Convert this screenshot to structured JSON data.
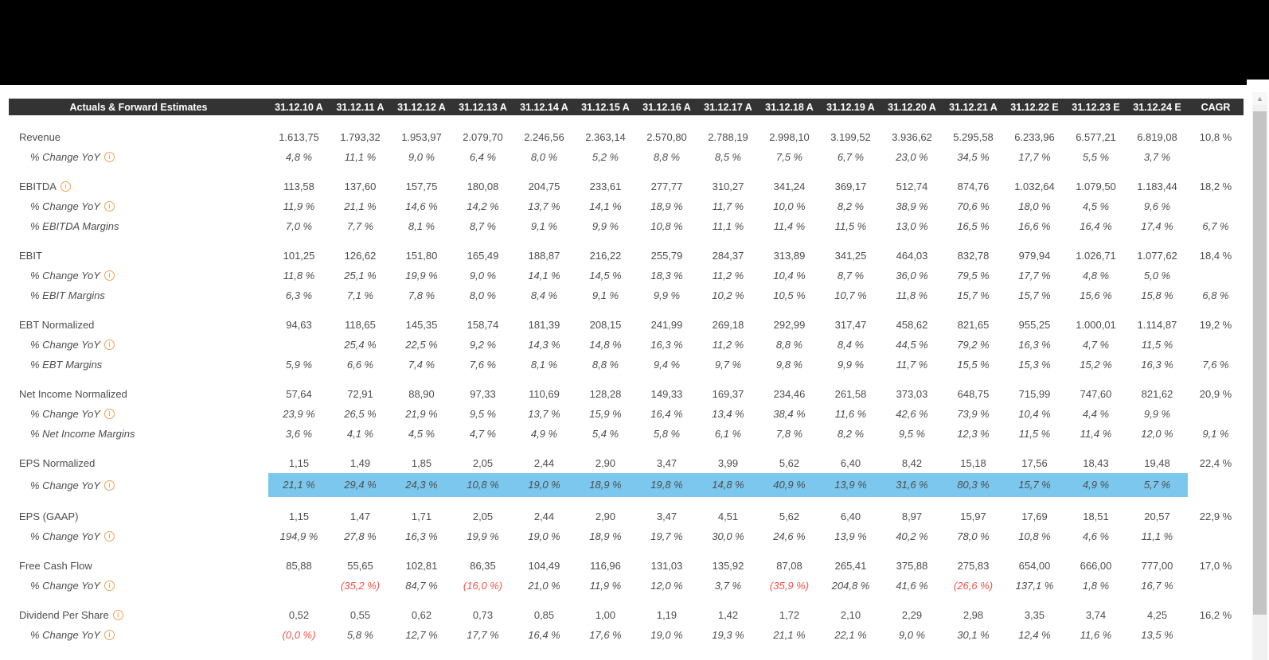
{
  "header": {
    "label": "Actuals & Forward Estimates",
    "columns": [
      "31.12.10 A",
      "31.12.11 A",
      "31.12.12 A",
      "31.12.13 A",
      "31.12.14 A",
      "31.12.15 A",
      "31.12.16 A",
      "31.12.17 A",
      "31.12.18 A",
      "31.12.19 A",
      "31.12.20 A",
      "31.12.21 A",
      "31.12.22 E",
      "31.12.23 E",
      "31.12.24 E",
      "CAGR"
    ]
  },
  "icons": {
    "info": "i",
    "scroll_up": "▲"
  },
  "colors": {
    "header_bg": "#333333",
    "highlight": "#7cc7ee",
    "negative": "#f0534b",
    "info_orange": "#f0a04f",
    "text": "#4d4d4d"
  },
  "table": {
    "rows": [
      {
        "label": "Revenue",
        "type": "main",
        "info": false,
        "highlight": false,
        "values": [
          "1.613,75",
          "1.793,32",
          "1.953,97",
          "2.079,70",
          "2.246,56",
          "2.363,14",
          "2.570,80",
          "2.788,19",
          "2.998,10",
          "3.199,52",
          "3.936,62",
          "5.295,58",
          "6.233,96",
          "6.577,21",
          "6.819,08"
        ],
        "cagr": "10,8 %"
      },
      {
        "label": "% Change YoY",
        "type": "sub",
        "info": true,
        "highlight": false,
        "values": [
          "4,8 %",
          "11,1 %",
          "9,0 %",
          "6,4 %",
          "8,0 %",
          "5,2 %",
          "8,8 %",
          "8,5 %",
          "7,5 %",
          "6,7 %",
          "23,0 %",
          "34,5 %",
          "17,7 %",
          "5,5 %",
          "3,7 %"
        ],
        "cagr": ""
      },
      {
        "label": "EBITDA",
        "type": "main",
        "info": true,
        "highlight": false,
        "values": [
          "113,58",
          "137,60",
          "157,75",
          "180,08",
          "204,75",
          "233,61",
          "277,77",
          "310,27",
          "341,24",
          "369,17",
          "512,74",
          "874,76",
          "1.032,64",
          "1.079,50",
          "1.183,44"
        ],
        "cagr": "18,2 %"
      },
      {
        "label": "% Change YoY",
        "type": "sub",
        "info": true,
        "highlight": false,
        "values": [
          "11,9 %",
          "21,1 %",
          "14,6 %",
          "14,2 %",
          "13,7 %",
          "14,1 %",
          "18,9 %",
          "11,7 %",
          "10,0 %",
          "8,2 %",
          "38,9 %",
          "70,6 %",
          "18,0 %",
          "4,5 %",
          "9,6 %"
        ],
        "cagr": ""
      },
      {
        "label": "% EBITDA Margins",
        "type": "sub",
        "info": false,
        "highlight": false,
        "values": [
          "7,0 %",
          "7,7 %",
          "8,1 %",
          "8,7 %",
          "9,1 %",
          "9,9 %",
          "10,8 %",
          "11,1 %",
          "11,4 %",
          "11,5 %",
          "13,0 %",
          "16,5 %",
          "16,6 %",
          "16,4 %",
          "17,4 %"
        ],
        "cagr": "6,7 %"
      },
      {
        "label": "EBIT",
        "type": "main",
        "info": false,
        "highlight": false,
        "values": [
          "101,25",
          "126,62",
          "151,80",
          "165,49",
          "188,87",
          "216,22",
          "255,79",
          "284,37",
          "313,89",
          "341,25",
          "464,03",
          "832,78",
          "979,94",
          "1.026,71",
          "1.077,62"
        ],
        "cagr": "18,4 %"
      },
      {
        "label": "% Change YoY",
        "type": "sub",
        "info": true,
        "highlight": false,
        "values": [
          "11,8 %",
          "25,1 %",
          "19,9 %",
          "9,0 %",
          "14,1 %",
          "14,5 %",
          "18,3 %",
          "11,2 %",
          "10,4 %",
          "8,7 %",
          "36,0 %",
          "79,5 %",
          "17,7 %",
          "4,8 %",
          "5,0 %"
        ],
        "cagr": ""
      },
      {
        "label": "% EBIT Margins",
        "type": "sub",
        "info": false,
        "highlight": false,
        "values": [
          "6,3 %",
          "7,1 %",
          "7,8 %",
          "8,0 %",
          "8,4 %",
          "9,1 %",
          "9,9 %",
          "10,2 %",
          "10,5 %",
          "10,7 %",
          "11,8 %",
          "15,7 %",
          "15,7 %",
          "15,6 %",
          "15,8 %"
        ],
        "cagr": "6,8 %"
      },
      {
        "label": "EBT Normalized",
        "type": "main",
        "info": false,
        "highlight": false,
        "values": [
          "94,63",
          "118,65",
          "145,35",
          "158,74",
          "181,39",
          "208,15",
          "241,99",
          "269,18",
          "292,99",
          "317,47",
          "458,62",
          "821,65",
          "955,25",
          "1.000,01",
          "1.114,87"
        ],
        "cagr": "19,2 %"
      },
      {
        "label": "% Change YoY",
        "type": "sub",
        "info": true,
        "highlight": false,
        "values": [
          "",
          "25,4 %",
          "22,5 %",
          "9,2 %",
          "14,3 %",
          "14,8 %",
          "16,3 %",
          "11,2 %",
          "8,8 %",
          "8,4 %",
          "44,5 %",
          "79,2 %",
          "16,3 %",
          "4,7 %",
          "11,5 %"
        ],
        "cagr": ""
      },
      {
        "label": "% EBT Margins",
        "type": "sub",
        "info": false,
        "highlight": false,
        "values": [
          "5,9 %",
          "6,6 %",
          "7,4 %",
          "7,6 %",
          "8,1 %",
          "8,8 %",
          "9,4 %",
          "9,7 %",
          "9,8 %",
          "9,9 %",
          "11,7 %",
          "15,5 %",
          "15,3 %",
          "15,2 %",
          "16,3 %"
        ],
        "cagr": "7,6 %"
      },
      {
        "label": "Net Income Normalized",
        "type": "main",
        "info": false,
        "highlight": false,
        "values": [
          "57,64",
          "72,91",
          "88,90",
          "97,33",
          "110,69",
          "128,28",
          "149,33",
          "169,37",
          "234,46",
          "261,58",
          "373,03",
          "648,75",
          "715,99",
          "747,60",
          "821,62"
        ],
        "cagr": "20,9 %"
      },
      {
        "label": "% Change YoY",
        "type": "sub",
        "info": true,
        "highlight": false,
        "values": [
          "23,9 %",
          "26,5 %",
          "21,9 %",
          "9,5 %",
          "13,7 %",
          "15,9 %",
          "16,4 %",
          "13,4 %",
          "38,4 %",
          "11,6 %",
          "42,6 %",
          "73,9 %",
          "10,4 %",
          "4,4 %",
          "9,9 %"
        ],
        "cagr": ""
      },
      {
        "label": "% Net Income Margins",
        "type": "sub",
        "info": false,
        "highlight": false,
        "values": [
          "3,6 %",
          "4,1 %",
          "4,5 %",
          "4,7 %",
          "4,9 %",
          "5,4 %",
          "5,8 %",
          "6,1 %",
          "7,8 %",
          "8,2 %",
          "9,5 %",
          "12,3 %",
          "11,5 %",
          "11,4 %",
          "12,0 %"
        ],
        "cagr": "9,1 %"
      },
      {
        "label": "EPS Normalized",
        "type": "main",
        "info": false,
        "highlight": false,
        "values": [
          "1,15",
          "1,49",
          "1,85",
          "2,05",
          "2,44",
          "2,90",
          "3,47",
          "3,99",
          "5,62",
          "6,40",
          "8,42",
          "15,18",
          "17,56",
          "18,43",
          "19,48"
        ],
        "cagr": "22,4 %"
      },
      {
        "label": "% Change YoY",
        "type": "sub",
        "info": true,
        "highlight": true,
        "values": [
          "21,1 %",
          "29,4 %",
          "24,3 %",
          "10,8 %",
          "19,0 %",
          "18,9 %",
          "19,8 %",
          "14,8 %",
          "40,9 %",
          "13,9 %",
          "31,6 %",
          "80,3 %",
          "15,7 %",
          "4,9 %",
          "5,7 %"
        ],
        "cagr": ""
      },
      {
        "label": "EPS (GAAP)",
        "type": "main",
        "info": false,
        "highlight": false,
        "values": [
          "1,15",
          "1,47",
          "1,71",
          "2,05",
          "2,44",
          "2,90",
          "3,47",
          "4,51",
          "5,62",
          "6,40",
          "8,97",
          "15,97",
          "17,69",
          "18,51",
          "20,57"
        ],
        "cagr": "22,9 %"
      },
      {
        "label": "% Change YoY",
        "type": "sub",
        "info": true,
        "highlight": false,
        "values": [
          "194,9 %",
          "27,8 %",
          "16,3 %",
          "19,9 %",
          "19,0 %",
          "18,9 %",
          "19,7 %",
          "30,0 %",
          "24,6 %",
          "13,9 %",
          "40,2 %",
          "78,0 %",
          "10,8 %",
          "4,6 %",
          "11,1 %"
        ],
        "cagr": ""
      },
      {
        "label": "Free Cash Flow",
        "type": "main",
        "info": false,
        "highlight": false,
        "values": [
          "85,88",
          "55,65",
          "102,81",
          "86,35",
          "104,49",
          "116,96",
          "131,03",
          "135,92",
          "87,08",
          "265,41",
          "375,88",
          "275,83",
          "654,00",
          "666,00",
          "777,00"
        ],
        "cagr": "17,0 %"
      },
      {
        "label": "% Change YoY",
        "type": "sub",
        "info": true,
        "highlight": false,
        "values": [
          "",
          "(35,2 %)",
          "84,7 %",
          "(16,0 %)",
          "21,0 %",
          "11,9 %",
          "12,0 %",
          "3,7 %",
          "(35,9 %)",
          "204,8 %",
          "41,6 %",
          "(26,6 %)",
          "137,1 %",
          "1,8 %",
          "16,7 %"
        ],
        "cagr": ""
      },
      {
        "label": "Dividend Per Share",
        "type": "main",
        "info": true,
        "highlight": false,
        "values": [
          "0,52",
          "0,55",
          "0,62",
          "0,73",
          "0,85",
          "1,00",
          "1,19",
          "1,42",
          "1,72",
          "2,10",
          "2,29",
          "2,98",
          "3,35",
          "3,74",
          "4,25"
        ],
        "cagr": "16,2 %"
      },
      {
        "label": "% Change YoY",
        "type": "sub",
        "info": true,
        "highlight": false,
        "values": [
          "(0,0 %)",
          "5,8 %",
          "12,7 %",
          "17,7 %",
          "16,4 %",
          "17,6 %",
          "19,0 %",
          "19,3 %",
          "21,1 %",
          "22,1 %",
          "9,0 %",
          "30,1 %",
          "12,4 %",
          "11,6 %",
          "13,5 %"
        ],
        "cagr": ""
      }
    ]
  }
}
